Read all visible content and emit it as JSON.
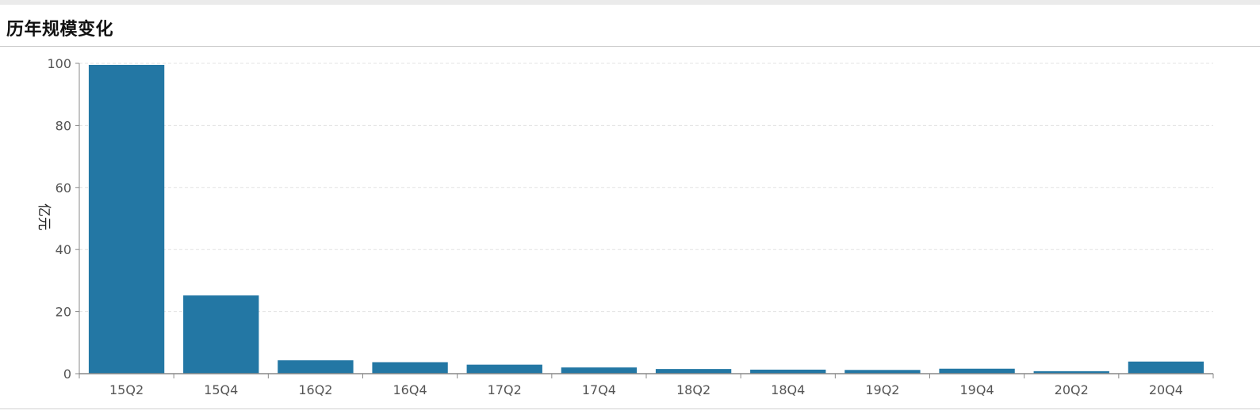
{
  "panel": {
    "title": "历年规模变化"
  },
  "chart_data": {
    "type": "bar",
    "categories": [
      "15Q2",
      "15Q4",
      "16Q2",
      "16Q4",
      "17Q2",
      "17Q4",
      "18Q2",
      "18Q4",
      "19Q2",
      "19Q4",
      "20Q2",
      "20Q4"
    ],
    "values": [
      99.5,
      25.2,
      4.3,
      3.7,
      2.9,
      2.0,
      1.5,
      1.3,
      1.2,
      1.6,
      0.8,
      3.9
    ],
    "title": "",
    "xlabel": "",
    "ylabel": "亿元",
    "ylim": [
      0,
      100
    ],
    "yticks": [
      0,
      20,
      40,
      60,
      80,
      100
    ],
    "grid": true,
    "legend": "none",
    "bar_color": "#2377a4"
  }
}
